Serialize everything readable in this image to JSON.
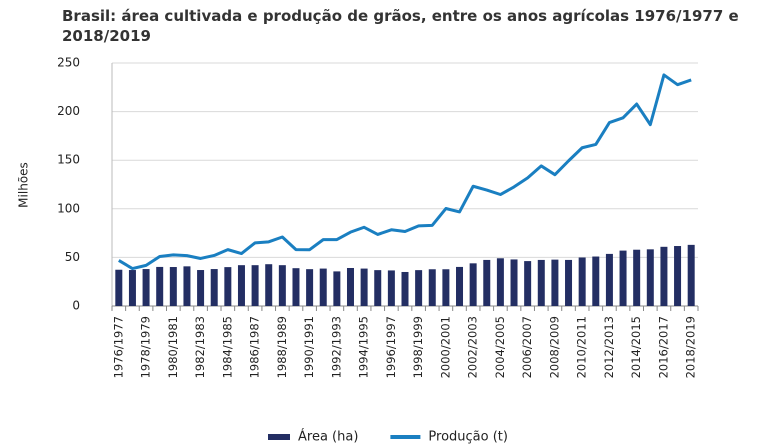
{
  "chart_data": {
    "type": "bar-line",
    "title": "Brasil: área cultivada e produção de grãos, entre os anos agrícolas 1976/1977 e 2018/2019",
    "y_label": "Milhões",
    "categories": [
      "1976/1977",
      null,
      "1978/1979",
      null,
      "1980/1981",
      null,
      "1982/1983",
      null,
      "1984/1985",
      null,
      "1986/1987",
      null,
      "1988/1989",
      null,
      "1990/1991",
      null,
      "1992/1993",
      null,
      "1994/1995",
      null,
      "1996/1997",
      null,
      "1998/1999",
      null,
      "2000/2001",
      null,
      "2002/2003",
      null,
      "2004/2005",
      null,
      "2006/2007",
      null,
      "2008/2009",
      null,
      "2010/2011",
      null,
      "2012/2013",
      null,
      "2014/2015",
      null,
      "2016/2017",
      null,
      "2018/2019"
    ],
    "series": [
      {
        "name": "Área (ha)",
        "type": "bar",
        "color": "#232e63",
        "values": [
          37.3,
          37.0,
          38.0,
          40.2,
          40.1,
          40.8,
          37.0,
          38.0,
          40.0,
          42.0,
          42.0,
          43.0,
          42.0,
          38.9,
          37.9,
          38.5,
          35.6,
          39.1,
          38.5,
          36.9,
          36.6,
          35.0,
          36.9,
          37.8,
          37.8,
          40.2,
          43.9,
          47.4,
          49.1,
          47.9,
          46.2,
          47.4,
          47.7,
          47.4,
          49.9,
          50.9,
          53.6,
          57.0,
          57.9,
          58.3,
          60.9,
          61.7,
          62.9
        ]
      },
      {
        "name": "Produção (t)",
        "type": "line",
        "color": "#1a7fc1",
        "values": [
          46.9,
          38.5,
          41.8,
          50.9,
          52.6,
          51.8,
          48.9,
          52.0,
          58.0,
          54.0,
          65.0,
          66.0,
          71.0,
          58.0,
          57.9,
          68.3,
          68.3,
          76.0,
          81.0,
          73.6,
          78.4,
          76.6,
          82.4,
          83.0,
          100.3,
          96.8,
          123.2,
          119.3,
          114.7,
          122.5,
          131.8,
          144.1,
          135.1,
          149.3,
          162.8,
          166.2,
          188.7,
          193.6,
          207.8,
          186.6,
          237.7,
          227.7,
          232.6
        ]
      }
    ],
    "ylim": [
      0,
      250
    ],
    "yticks": [
      0,
      50,
      100,
      150,
      200,
      250
    ],
    "grid": true,
    "legend": "bottom"
  }
}
